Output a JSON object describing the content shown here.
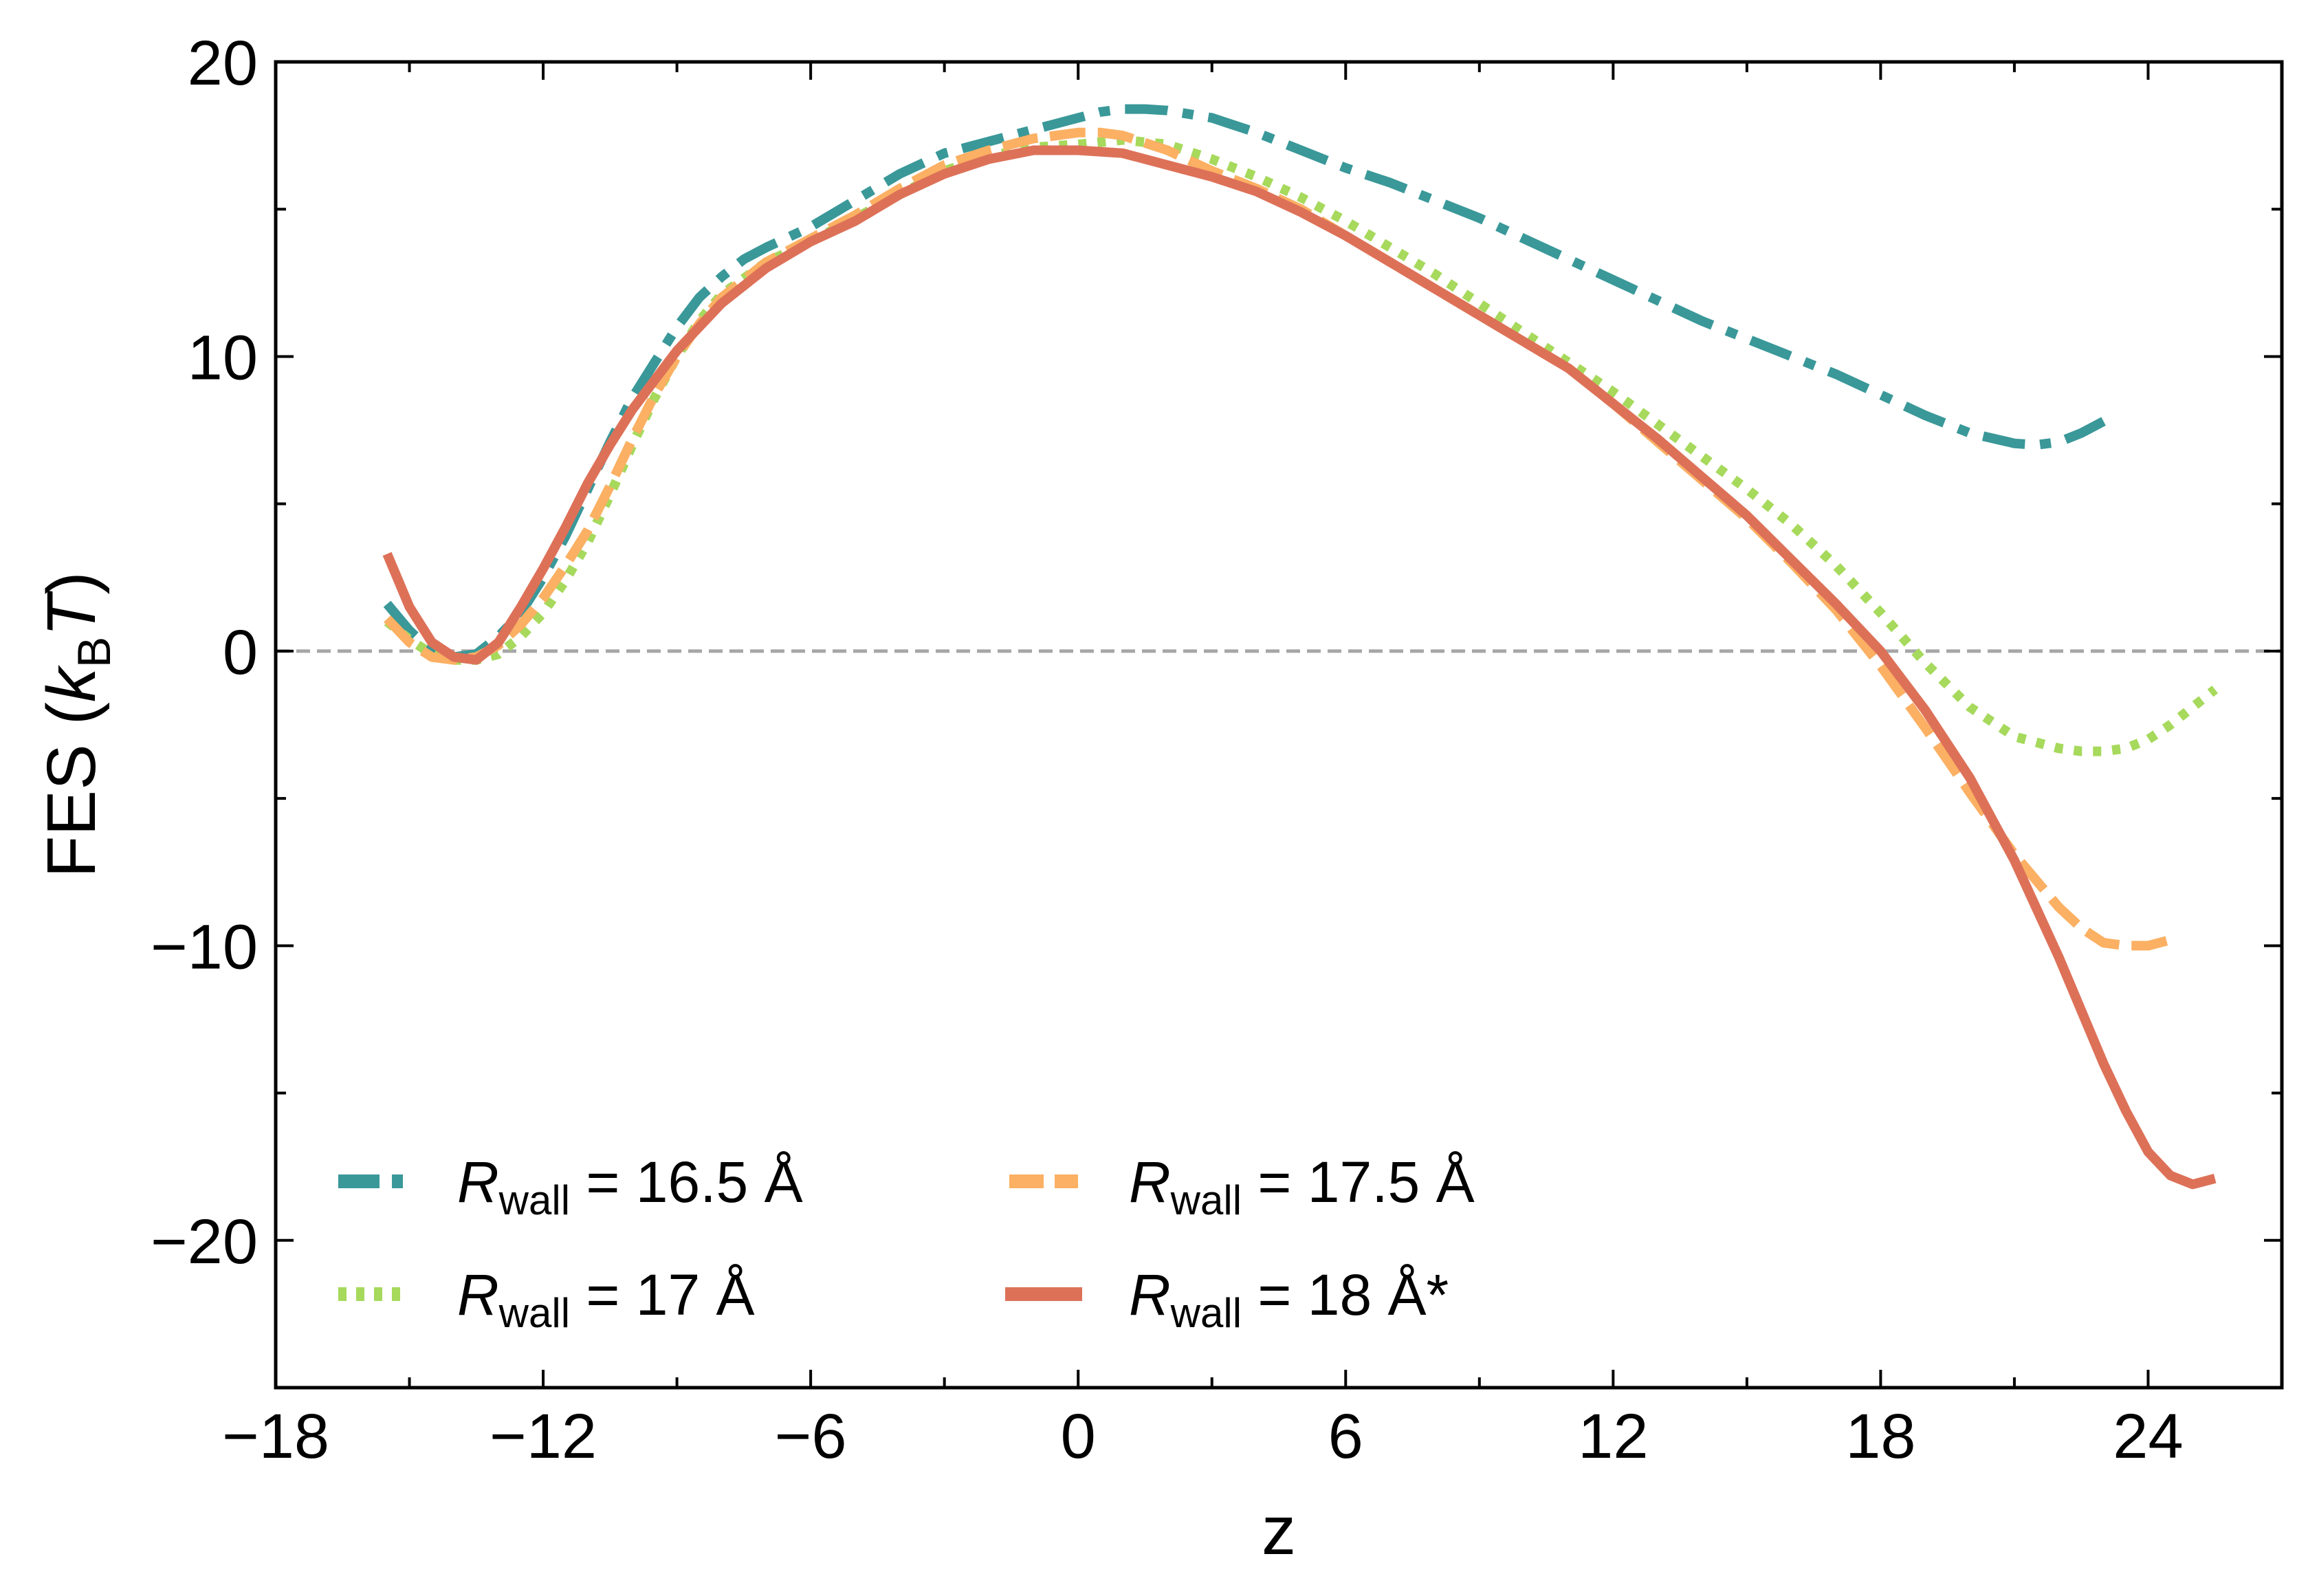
{
  "chart_data": {
    "type": "line",
    "title": "",
    "xlabel": "z",
    "ylabel": {
      "prefix": "FES (",
      "k": "k",
      "sub": "B",
      "T": "T",
      "suffix": ")"
    },
    "xlim": [
      -18,
      27
    ],
    "ylim": [
      -25,
      20
    ],
    "xticks": [
      -18,
      -12,
      -6,
      0,
      6,
      12,
      18,
      24
    ],
    "xtick_labels": [
      "−18",
      "−12",
      "−6",
      "0",
      "6",
      "12",
      "18",
      "24"
    ],
    "yticks": [
      -20,
      -10,
      0,
      10,
      20
    ],
    "ytick_labels": [
      "−20",
      "−10",
      "0",
      "10",
      "20"
    ],
    "reference_line": {
      "y": 0,
      "style": "dashed",
      "color": "#a6a6a6"
    },
    "legend_position": "lower-left",
    "series": [
      {
        "name": "R_wall = 16.5 Å",
        "legend": {
          "R": "R",
          "sub": "wall",
          "rest": " = 16.5 Å"
        },
        "color": "#3a9899",
        "style": "dashdot",
        "x": [
          -15.5,
          -15.0,
          -14.5,
          -14.0,
          -13.5,
          -13.0,
          -12.5,
          -12.0,
          -11.5,
          -11.0,
          -10.5,
          -10.0,
          -9.5,
          -9.0,
          -8.5,
          -8.0,
          -7.5,
          -7.0,
          -6.0,
          -5.0,
          -4.0,
          -3.0,
          -2.0,
          -1.0,
          0.0,
          0.5,
          1.0,
          1.5,
          2.0,
          3.0,
          4.0,
          5.0,
          6.0,
          7.0,
          8.0,
          9.0,
          10.0,
          11.0,
          12.0,
          13.0,
          14.0,
          15.0,
          16.0,
          17.0,
          18.0,
          19.0,
          20.0,
          21.0,
          21.5,
          22.0,
          22.5,
          23.0
        ],
        "y": [
          1.6,
          0.7,
          0.0,
          -0.2,
          -0.1,
          0.5,
          1.3,
          2.5,
          3.9,
          5.5,
          7.1,
          8.6,
          9.8,
          11.0,
          12.0,
          12.7,
          13.3,
          13.7,
          14.4,
          15.3,
          16.2,
          16.9,
          17.3,
          17.7,
          18.1,
          18.3,
          18.4,
          18.4,
          18.35,
          18.1,
          17.6,
          17.0,
          16.4,
          15.9,
          15.3,
          14.7,
          14.0,
          13.3,
          12.6,
          11.9,
          11.2,
          10.6,
          10.0,
          9.4,
          8.7,
          8.0,
          7.4,
          7.05,
          7.0,
          7.1,
          7.4,
          7.8
        ]
      },
      {
        "name": "R_wall = 17 Å",
        "legend": {
          "R": "R",
          "sub": "wall",
          "rest": " = 17 Å"
        },
        "color": "#a6d95c",
        "style": "dotted",
        "x": [
          -15.5,
          -15.0,
          -14.5,
          -14.0,
          -13.5,
          -13.0,
          -12.5,
          -12.0,
          -11.5,
          -11.0,
          -10.5,
          -10.0,
          -9.5,
          -9.0,
          -8.5,
          -8.0,
          -7.0,
          -6.0,
          -5.0,
          -4.0,
          -3.0,
          -2.0,
          -1.0,
          0.0,
          1.0,
          2.0,
          3.0,
          4.0,
          5.0,
          6.0,
          7.0,
          8.0,
          9.0,
          10.0,
          11.0,
          12.0,
          13.0,
          14.0,
          15.0,
          16.0,
          17.0,
          18.0,
          19.0,
          20.0,
          21.0,
          22.0,
          22.5,
          23.0,
          23.5,
          24.0,
          24.5,
          25.0,
          25.5
        ],
        "y": [
          1.0,
          0.4,
          -0.1,
          -0.3,
          -0.3,
          -0.1,
          0.5,
          1.3,
          2.4,
          3.7,
          5.3,
          7.0,
          8.6,
          10.0,
          11.2,
          12.1,
          13.2,
          13.9,
          14.7,
          15.5,
          16.3,
          16.8,
          17.1,
          17.2,
          17.35,
          17.2,
          16.7,
          16.1,
          15.4,
          14.6,
          13.7,
          12.8,
          11.8,
          10.8,
          9.8,
          8.8,
          7.7,
          6.6,
          5.5,
          4.3,
          2.9,
          1.3,
          -0.4,
          -1.9,
          -2.9,
          -3.3,
          -3.4,
          -3.4,
          -3.3,
          -3.0,
          -2.5,
          -1.9,
          -1.3
        ]
      },
      {
        "name": "R_wall = 17.5 Å",
        "legend": {
          "R": "R",
          "sub": "wall",
          "rest": " = 17.5 Å"
        },
        "color": "#fbb063",
        "style": "dashed",
        "x": [
          -15.5,
          -15.0,
          -14.5,
          -14.0,
          -13.5,
          -13.0,
          -12.5,
          -12.0,
          -11.5,
          -11.0,
          -10.5,
          -10.0,
          -9.5,
          -9.0,
          -8.5,
          -8.0,
          -7.0,
          -6.0,
          -5.0,
          -4.0,
          -3.0,
          -2.0,
          -1.0,
          0.0,
          0.5,
          1.0,
          2.0,
          3.0,
          4.0,
          5.0,
          6.0,
          7.0,
          8.0,
          9.0,
          10.0,
          11.0,
          12.0,
          13.0,
          14.0,
          15.0,
          16.0,
          17.0,
          18.0,
          19.0,
          20.0,
          21.0,
          22.0,
          22.5,
          23.0,
          23.5,
          24.0,
          24.5
        ],
        "y": [
          1.1,
          0.3,
          -0.2,
          -0.3,
          -0.2,
          0.2,
          0.9,
          1.8,
          2.9,
          4.1,
          5.6,
          7.2,
          8.7,
          10.0,
          11.1,
          12.0,
          13.2,
          14.0,
          14.8,
          15.7,
          16.5,
          17.0,
          17.4,
          17.6,
          17.6,
          17.5,
          17.0,
          16.3,
          15.7,
          15.0,
          14.1,
          13.2,
          12.3,
          11.4,
          10.5,
          9.6,
          8.4,
          7.1,
          5.8,
          4.5,
          3.0,
          1.4,
          -0.5,
          -2.6,
          -4.8,
          -6.9,
          -8.7,
          -9.4,
          -9.9,
          -10.0,
          -10.0,
          -9.8
        ]
      },
      {
        "name": "R_wall = 18 Å*",
        "legend": {
          "R": "R",
          "sub": "wall",
          "rest": " = 18 Å*"
        },
        "color": "#dd7158",
        "style": "solid",
        "x": [
          -15.5,
          -15.0,
          -14.5,
          -14.0,
          -13.5,
          -13.0,
          -12.5,
          -12.0,
          -11.5,
          -11.0,
          -10.5,
          -10.0,
          -9.5,
          -9.0,
          -8.5,
          -8.0,
          -7.0,
          -6.0,
          -5.0,
          -4.0,
          -3.0,
          -2.0,
          -1.0,
          0.0,
          1.0,
          2.0,
          3.0,
          4.0,
          5.0,
          6.0,
          7.0,
          8.0,
          9.0,
          10.0,
          11.0,
          12.0,
          13.0,
          14.0,
          15.0,
          16.0,
          17.0,
          18.0,
          19.0,
          20.0,
          21.0,
          22.0,
          23.0,
          23.5,
          24.0,
          24.5,
          25.0,
          25.5
        ],
        "y": [
          3.3,
          1.5,
          0.3,
          -0.2,
          -0.3,
          0.3,
          1.5,
          2.8,
          4.2,
          5.7,
          7.0,
          8.2,
          9.2,
          10.2,
          11.0,
          11.8,
          13.0,
          13.9,
          14.6,
          15.5,
          16.2,
          16.7,
          17.0,
          17.0,
          16.9,
          16.5,
          16.1,
          15.6,
          14.9,
          14.1,
          13.2,
          12.3,
          11.4,
          10.5,
          9.6,
          8.4,
          7.2,
          5.9,
          4.6,
          3.1,
          1.6,
          0.0,
          -2.0,
          -4.3,
          -7.1,
          -10.4,
          -14.0,
          -15.6,
          -17.0,
          -17.8,
          -18.1,
          -17.9
        ]
      }
    ]
  }
}
